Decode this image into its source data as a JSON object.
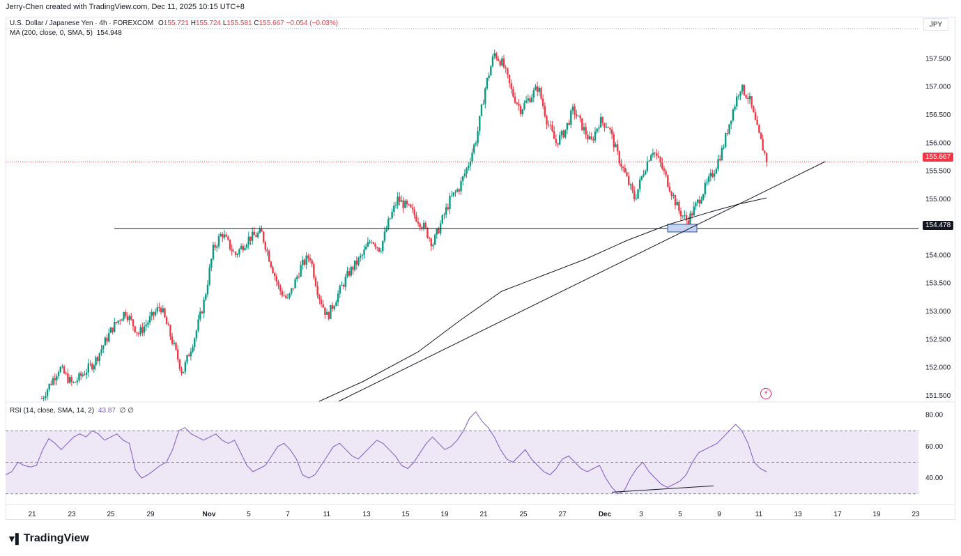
{
  "header": {
    "attribution": "Jerry-Chen created with TradingView.com, Dec 11, 2025 10:15 UTC+8"
  },
  "legend": {
    "symbol": "U.S. Dollar / Japanese Yen · 4h · FOREXCOM",
    "open_label": "O",
    "open": "155.721",
    "high_label": "H",
    "high": "155.724",
    "low_label": "L",
    "low": "155.581",
    "close_label": "C",
    "close": "155.667",
    "change": "−0.054 (−0.03%)",
    "ma": "MA (200, close, 0, SMA, 5)",
    "ma_value": "154.948",
    "rsi": "RSI (14, close, SMA, 14, 2)",
    "rsi_value": "43.87",
    "rsi_extra": "∅ ∅"
  },
  "currency": "JPY",
  "footer": {
    "brand": "TradingView",
    "icon": "tradingview-logo-icon"
  },
  "colors": {
    "up": "#089981",
    "down": "#f23645",
    "rsi": "#7e57c2",
    "rsi_band": "#ede7f6",
    "last_price": "#f23645"
  },
  "chart_data": [
    {
      "type": "candlestick",
      "title": "",
      "price_axis": {
        "ticks": [
          "157.500",
          "157.000",
          "156.500",
          "156.000",
          "155.500",
          "155.000",
          "154.000",
          "153.500",
          "153.000",
          "152.500",
          "152.000",
          "151.500"
        ],
        "ylim": [
          151.4,
          158.1
        ]
      },
      "time_axis": {
        "ticks": [
          "21",
          "23",
          "25",
          "29",
          "Nov",
          "5",
          "7",
          "11",
          "13",
          "15",
          "19",
          "21",
          "25",
          "27",
          "Dec",
          "3",
          "5",
          "9",
          "11",
          "13",
          "17",
          "19",
          "23"
        ]
      },
      "last_price": "155.667",
      "horizontal_level": "154.478",
      "series_points": [
        [
          0,
          151.45
        ],
        [
          4,
          152.0
        ],
        [
          7,
          151.7
        ],
        [
          12,
          152.1
        ],
        [
          16,
          152.7
        ],
        [
          19,
          153.0
        ],
        [
          22,
          152.6
        ],
        [
          25,
          152.9
        ],
        [
          27,
          153.1
        ],
        [
          30,
          152.4
        ],
        [
          32,
          151.9
        ],
        [
          35,
          152.6
        ],
        [
          37,
          153.2
        ],
        [
          39,
          154.1
        ],
        [
          41,
          154.4
        ],
        [
          44,
          154.0
        ],
        [
          47,
          154.3
        ],
        [
          50,
          154.4
        ],
        [
          52,
          153.9
        ],
        [
          54,
          153.4
        ],
        [
          56,
          153.2
        ],
        [
          59,
          153.8
        ],
        [
          61,
          154.0
        ],
        [
          63,
          153.3
        ],
        [
          65,
          152.9
        ],
        [
          68,
          153.4
        ],
        [
          70,
          153.7
        ],
        [
          73,
          154.0
        ],
        [
          75,
          154.3
        ],
        [
          77,
          154.1
        ],
        [
          79,
          154.6
        ],
        [
          81,
          155.0
        ],
        [
          84,
          154.8
        ],
        [
          87,
          154.5
        ],
        [
          89,
          154.2
        ],
        [
          91,
          154.6
        ],
        [
          93,
          155.0
        ],
        [
          95,
          155.2
        ],
        [
          97,
          155.6
        ],
        [
          99,
          156.1
        ],
        [
          101,
          157.0
        ],
        [
          103,
          157.6
        ],
        [
          105,
          157.4
        ],
        [
          107,
          156.9
        ],
        [
          109,
          156.6
        ],
        [
          111,
          156.8
        ],
        [
          113,
          157.0
        ],
        [
          115,
          156.4
        ],
        [
          117,
          156.0
        ],
        [
          119,
          156.2
        ],
        [
          121,
          156.6
        ],
        [
          123,
          156.3
        ],
        [
          125,
          156.0
        ],
        [
          127,
          156.4
        ],
        [
          129,
          156.3
        ],
        [
          131,
          155.8
        ],
        [
          133,
          155.4
        ],
        [
          135,
          155.0
        ],
        [
          137,
          155.5
        ],
        [
          139,
          155.9
        ],
        [
          141,
          155.6
        ],
        [
          143,
          155.2
        ],
        [
          145,
          154.8
        ],
        [
          147,
          154.6
        ],
        [
          149,
          154.9
        ],
        [
          151,
          155.2
        ],
        [
          153,
          155.5
        ],
        [
          155,
          155.9
        ],
        [
          157,
          156.5
        ],
        [
          159,
          157.0
        ],
        [
          161,
          156.8
        ],
        [
          163,
          156.2
        ],
        [
          165,
          155.7
        ]
      ]
    },
    {
      "type": "line",
      "title": "",
      "y_axis": {
        "ticks": [
          "80.00",
          "60.00",
          "40.00"
        ],
        "ylim": [
          25,
          86
        ]
      },
      "levels": [
        70,
        50,
        30
      ],
      "values": [
        42,
        44,
        50,
        48,
        47,
        48,
        58,
        65,
        62,
        58,
        62,
        66,
        68,
        66,
        70,
        68,
        64,
        66,
        68,
        64,
        62,
        45,
        40,
        42,
        45,
        48,
        50,
        58,
        70,
        72,
        68,
        66,
        64,
        66,
        68,
        64,
        62,
        64,
        56,
        48,
        44,
        46,
        48,
        54,
        60,
        62,
        58,
        52,
        42,
        40,
        42,
        48,
        54,
        60,
        62,
        58,
        54,
        52,
        56,
        60,
        64,
        62,
        58,
        54,
        48,
        46,
        50,
        56,
        62,
        66,
        62,
        58,
        60,
        64,
        70,
        78,
        82,
        76,
        72,
        66,
        58,
        52,
        50,
        54,
        58,
        52,
        48,
        44,
        42,
        46,
        52,
        54,
        50,
        46,
        44,
        46,
        48,
        40,
        34,
        30,
        32,
        40,
        46,
        50,
        44,
        40,
        36,
        34,
        36,
        38,
        42,
        50,
        56,
        58,
        60,
        62,
        66,
        70,
        74,
        70,
        62,
        50,
        46,
        44
      ],
      "annotation": "divergence trendline"
    }
  ]
}
